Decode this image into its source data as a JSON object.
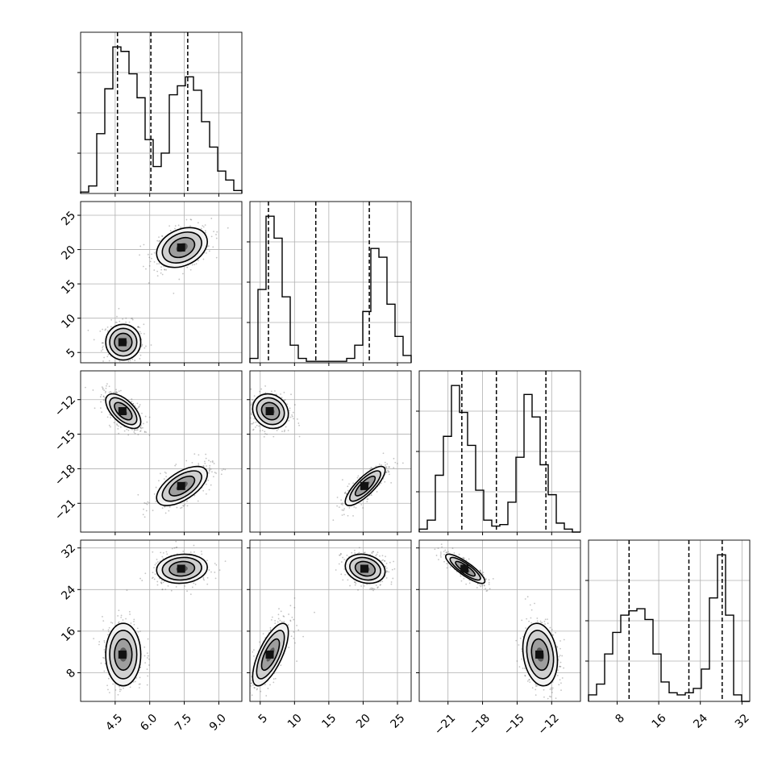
{
  "chart_data": {
    "type": "corner",
    "params": [
      {
        "ticks": [
          "4.5",
          "6.0",
          "7.5",
          "9.0"
        ],
        "tick_values": [
          4.5,
          6.0,
          7.5,
          9.0
        ],
        "range": [
          3.0,
          10.0
        ]
      },
      {
        "ticks": [
          "5",
          "10",
          "15",
          "20",
          "25"
        ],
        "tick_values": [
          5,
          10,
          15,
          20,
          25
        ],
        "range": [
          3.5,
          27.0
        ]
      },
      {
        "ticks": [
          "−12",
          "−15",
          "−18",
          "−21"
        ],
        "tick_values": [
          -12,
          -15,
          -18,
          -21
        ],
        "range": [
          -23.5,
          -9.5
        ]
      },
      {
        "ticks": [
          "8",
          "16",
          "24",
          "32"
        ],
        "tick_values": [
          8,
          16,
          24,
          32
        ],
        "range": [
          2.5,
          33.5
        ]
      }
    ],
    "diag_ticks": [
      {
        "ticks": [
          "4.5",
          "6.0",
          "7.5",
          "9.0"
        ]
      },
      {
        "ticks": [
          "5",
          "10",
          "15",
          "20",
          "25"
        ]
      },
      {
        "ticks": [
          "−21",
          "−18",
          "−15",
          "−12"
        ],
        "tick_values": [
          -21,
          -18,
          -15,
          -12
        ]
      },
      {
        "ticks": [
          "8",
          "16",
          "24",
          "32"
        ]
      }
    ],
    "histograms": [
      [
        1,
        5,
        40,
        70,
        98,
        95,
        80,
        64,
        36,
        18,
        27,
        66,
        72,
        78,
        69,
        48,
        31,
        15,
        9,
        2
      ],
      [
        3,
        50,
        100,
        85,
        45,
        12,
        3,
        1,
        1,
        1,
        1,
        1,
        3,
        12,
        35,
        78,
        72,
        40,
        18,
        5
      ],
      [
        2,
        8,
        38,
        64,
        98,
        80,
        58,
        28,
        8,
        4,
        5,
        20,
        50,
        92,
        77,
        45,
        25,
        6,
        2,
        0
      ],
      [
        3,
        8,
        22,
        32,
        40,
        42,
        43,
        38,
        22,
        9,
        4,
        3,
        4,
        6,
        15,
        48,
        68,
        40,
        3,
        0
      ]
    ],
    "quantiles": [
      [
        4.6,
        6.05,
        7.65
      ],
      [
        6.2,
        13.1,
        20.9
      ],
      [
        -19.8,
        -16.8,
        -12.5
      ],
      [
        10.3,
        21.8,
        28.2
      ]
    ],
    "modes": [
      {
        "mean": [
          4.85,
          6.5,
          -13.0,
          11.5
        ],
        "sd": [
          0.38,
          1.3,
          0.75,
          3.0
        ]
      },
      {
        "mean": [
          7.4,
          20.3,
          -19.5,
          28.0
        ],
        "sd": [
          0.55,
          1.45,
          0.85,
          1.4
        ]
      }
    ],
    "correlations": {
      "1-0": [
        0.0,
        0.3
      ],
      "2-0": [
        -0.6,
        0.6
      ],
      "2-1": [
        -0.15,
        0.8
      ],
      "3-0": [
        0.0,
        0.1
      ],
      "3-1": [
        0.7,
        -0.2
      ],
      "3-2": [
        -0.2,
        -0.85
      ]
    },
    "grid": true
  }
}
